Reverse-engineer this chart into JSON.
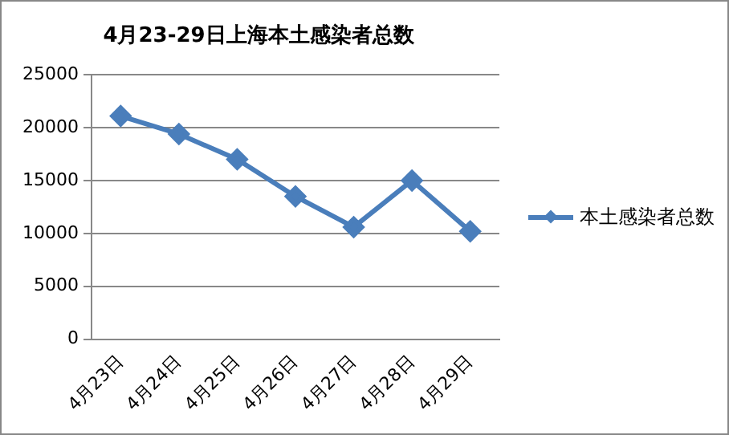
{
  "chart_data": {
    "type": "line",
    "title": "4月23-29日上海本土感染者总数",
    "categories": [
      "4月23日",
      "4月24日",
      "4月25日",
      "4月26日",
      "4月27日",
      "4月28日",
      "4月29日"
    ],
    "series": [
      {
        "name": "本土感染者总数",
        "color": "#4a7ebb",
        "values": [
          21100,
          19400,
          17000,
          13500,
          10600,
          15000,
          10200
        ]
      }
    ],
    "ylim": [
      0,
      25000
    ],
    "yticks": [
      0,
      5000,
      10000,
      15000,
      20000,
      25000
    ],
    "grid": "y",
    "legend": "right",
    "marker": "diamond",
    "line_style": "solid"
  }
}
